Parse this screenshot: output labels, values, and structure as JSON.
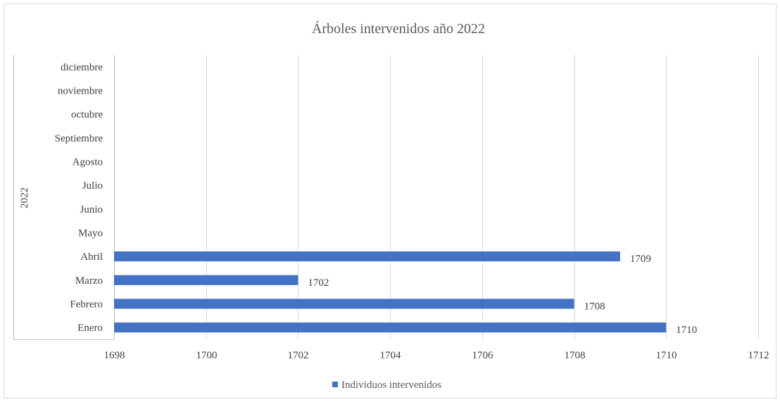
{
  "chart_data": {
    "type": "bar",
    "orientation": "horizontal",
    "title": "Árboles intervenidos año 2022",
    "group_label": "2022",
    "categories": [
      "Enero",
      "Febrero",
      "Marzo",
      "Abril",
      "Mayo",
      "Junio",
      "Julio",
      "Agosto",
      "Septiembre",
      "octubre",
      "noviembre",
      "diciembre"
    ],
    "series": [
      {
        "name": "Individuos intervenidos",
        "values": [
          1710,
          1708,
          1702,
          1709,
          null,
          null,
          null,
          null,
          null,
          null,
          null,
          null
        ],
        "color": "#4472C4"
      }
    ],
    "xlim": [
      1698,
      1712
    ],
    "x_ticks": [
      "1698",
      "1700",
      "1702",
      "1704",
      "1706",
      "1708",
      "1710",
      "1712"
    ],
    "grid": "vertical",
    "legend_position": "bottom"
  }
}
